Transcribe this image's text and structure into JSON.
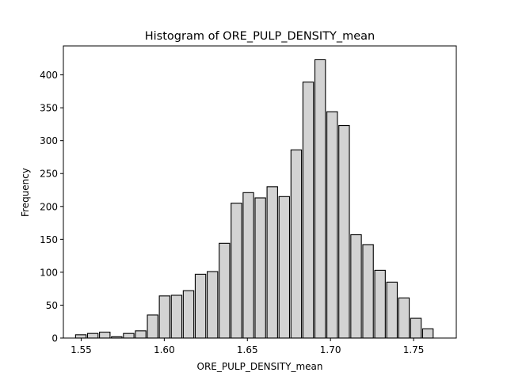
{
  "chart_data": {
    "type": "bar",
    "title": "Histogram of ORE_PULP_DENSITY_mean",
    "xlabel": "ORE_PULP_DENSITY_mean",
    "ylabel": "Frequency",
    "xlim": [
      1.5393,
      1.7757
    ],
    "ylim": [
      0,
      444
    ],
    "xticks": [
      "1.55",
      "1.60",
      "1.65",
      "1.70",
      "1.75"
    ],
    "yticks": [
      "0",
      "50",
      "100",
      "150",
      "200",
      "250",
      "300",
      "350",
      "400"
    ],
    "grid": false,
    "legend": "none",
    "bar_color": "#d3d3d3",
    "edge_color": "#000000",
    "bins": [
      {
        "x0": 1.5462,
        "x1": 1.5534,
        "value": 5
      },
      {
        "x0": 1.5534,
        "x1": 1.5606,
        "value": 7
      },
      {
        "x0": 1.5606,
        "x1": 1.5678,
        "value": 9
      },
      {
        "x0": 1.5678,
        "x1": 1.575,
        "value": 2
      },
      {
        "x0": 1.575,
        "x1": 1.5822,
        "value": 7
      },
      {
        "x0": 1.5822,
        "x1": 1.5894,
        "value": 11
      },
      {
        "x0": 1.5894,
        "x1": 1.5966,
        "value": 35
      },
      {
        "x0": 1.5966,
        "x1": 1.6038,
        "value": 64
      },
      {
        "x0": 1.6038,
        "x1": 1.611,
        "value": 65
      },
      {
        "x0": 1.611,
        "x1": 1.6182,
        "value": 72
      },
      {
        "x0": 1.6182,
        "x1": 1.6254,
        "value": 97
      },
      {
        "x0": 1.6254,
        "x1": 1.6326,
        "value": 101
      },
      {
        "x0": 1.6326,
        "x1": 1.6398,
        "value": 144
      },
      {
        "x0": 1.6398,
        "x1": 1.647,
        "value": 205
      },
      {
        "x0": 1.647,
        "x1": 1.6542,
        "value": 221
      },
      {
        "x0": 1.6542,
        "x1": 1.6614,
        "value": 213
      },
      {
        "x0": 1.6614,
        "x1": 1.6686,
        "value": 230
      },
      {
        "x0": 1.6686,
        "x1": 1.6758,
        "value": 215
      },
      {
        "x0": 1.6758,
        "x1": 1.683,
        "value": 286
      },
      {
        "x0": 1.683,
        "x1": 1.6902,
        "value": 389
      },
      {
        "x0": 1.6902,
        "x1": 1.6974,
        "value": 423
      },
      {
        "x0": 1.6974,
        "x1": 1.7046,
        "value": 344
      },
      {
        "x0": 1.7046,
        "x1": 1.7118,
        "value": 323
      },
      {
        "x0": 1.7118,
        "x1": 1.719,
        "value": 157
      },
      {
        "x0": 1.719,
        "x1": 1.7262,
        "value": 142
      },
      {
        "x0": 1.7262,
        "x1": 1.7334,
        "value": 103
      },
      {
        "x0": 1.7334,
        "x1": 1.7406,
        "value": 85
      },
      {
        "x0": 1.7406,
        "x1": 1.7478,
        "value": 61
      },
      {
        "x0": 1.7478,
        "x1": 1.755,
        "value": 30
      },
      {
        "x0": 1.755,
        "x1": 1.7622,
        "value": 14
      }
    ]
  }
}
